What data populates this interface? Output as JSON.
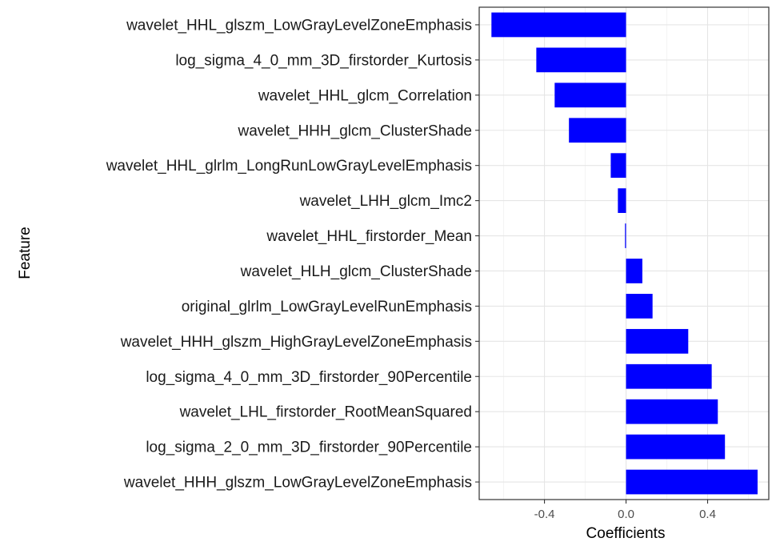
{
  "chart_data": {
    "type": "bar",
    "orientation": "horizontal",
    "xlabel": "Coefficients",
    "ylabel": "Feature",
    "xlim": [
      -0.72,
      0.7
    ],
    "xticks": [
      -0.4,
      0.0,
      0.4
    ],
    "xtick_labels": [
      "-0.4",
      "0.0",
      "0.4"
    ],
    "grid": true,
    "bar_color": "#0000ff",
    "categories": [
      "wavelet_HHL_glszm_LowGrayLevelZoneEmphasis",
      "log_sigma_4_0_mm_3D_firstorder_Kurtosis",
      "wavelet_HHL_glcm_Correlation",
      "wavelet_HHH_glcm_ClusterShade",
      "wavelet_HHL_glrlm_LongRunLowGrayLevelEmphasis",
      "wavelet_LHH_glcm_Imc2",
      "wavelet_HHL_firstorder_Mean",
      "wavelet_HLH_glcm_ClusterShade",
      "original_glrlm_LowGrayLevelRunEmphasis",
      "wavelet_HHH_glszm_HighGrayLevelZoneEmphasis",
      "log_sigma_4_0_mm_3D_firstorder_90Percentile",
      "wavelet_LHL_firstorder_RootMeanSquared",
      "log_sigma_2_0_mm_3D_firstorder_90Percentile",
      "wavelet_HHH_glszm_LowGrayLevelZoneEmphasis"
    ],
    "values": [
      -0.66,
      -0.44,
      -0.35,
      -0.28,
      -0.075,
      -0.04,
      -0.005,
      0.08,
      0.13,
      0.305,
      0.42,
      0.45,
      0.485,
      0.645
    ]
  }
}
